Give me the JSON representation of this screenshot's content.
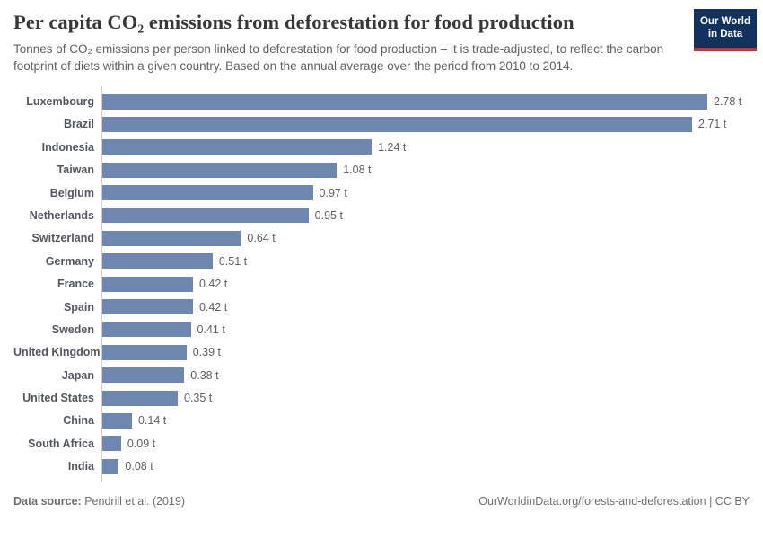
{
  "header": {
    "title": "Per capita CO₂ emissions from deforestation for food production",
    "subtitle": "Tonnes of CO₂ emissions per person linked to deforestation for food production – it is trade-adjusted, to reflect the carbon footprint of diets within a given country. Based on the annual average over the period from 2010 to 2014.",
    "logo": {
      "line1": "Our World",
      "line2": "in Data",
      "bg_color": "#12325e",
      "accent_color": "#d2302c"
    }
  },
  "chart_data": {
    "type": "bar",
    "orientation": "horizontal",
    "unit": "t",
    "bar_color": "#6d87b0",
    "xlim": [
      0,
      2.78
    ],
    "grid": false,
    "legend": "none",
    "categories": [
      "Luxembourg",
      "Brazil",
      "Indonesia",
      "Taiwan",
      "Belgium",
      "Netherlands",
      "Switzerland",
      "Germany",
      "France",
      "Spain",
      "Sweden",
      "United Kingdom",
      "Japan",
      "United States",
      "China",
      "South Africa",
      "India"
    ],
    "values": [
      2.78,
      2.71,
      1.24,
      1.08,
      0.97,
      0.95,
      0.64,
      0.51,
      0.42,
      0.42,
      0.41,
      0.39,
      0.38,
      0.35,
      0.14,
      0.09,
      0.08
    ],
    "value_labels": [
      "2.78 t",
      "2.71 t",
      "1.24 t",
      "1.08 t",
      "0.97 t",
      "0.95 t",
      "0.64 t",
      "0.51 t",
      "0.42 t",
      "0.42 t",
      "0.41 t",
      "0.39 t",
      "0.38 t",
      "0.35 t",
      "0.14 t",
      "0.09 t",
      "0.08 t"
    ]
  },
  "footer": {
    "source_label": "Data source:",
    "source_value": " Pendrill et al. (2019)",
    "link_text": "OurWorldinData.org/forests-and-deforestation",
    "separator": " | ",
    "license": "CC BY"
  }
}
